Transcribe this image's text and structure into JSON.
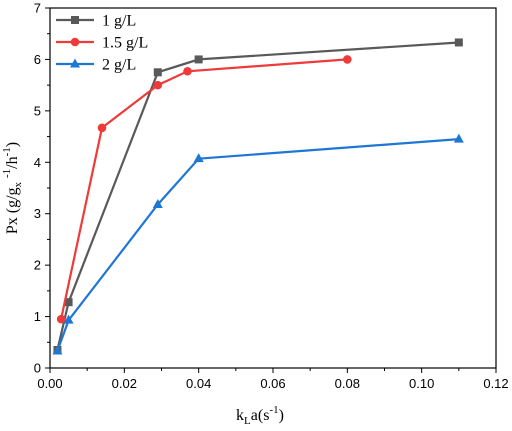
{
  "chart_data": {
    "type": "line",
    "title": "",
    "xlabel": {
      "base": "k",
      "sub": "L",
      "rest": "a(s",
      "sup": "-1",
      "close": ")"
    },
    "ylabel": {
      "p1": "Px (g/g",
      "sub": "x",
      "p2": " ",
      "sup1": "-1",
      "p3": "/h",
      "sup2": "-1",
      "p4": ")"
    },
    "xlim": [
      0,
      0.12
    ],
    "ylim": [
      0,
      7
    ],
    "x_ticks": [
      "0.00",
      "0.02",
      "0.04",
      "0.06",
      "0.08",
      "0.10",
      "0.12"
    ],
    "y_ticks": [
      "0",
      "1",
      "2",
      "3",
      "4",
      "5",
      "6",
      "7"
    ],
    "legend_position": "top-left",
    "series": [
      {
        "name": "1 g/L",
        "color": "#595959",
        "marker": "square",
        "x": [
          0.002,
          0.005,
          0.029,
          0.04,
          0.11
        ],
        "y": [
          0.35,
          1.28,
          5.75,
          6.0,
          6.33
        ]
      },
      {
        "name": "1.5 g/L",
        "color": "#ee3a3a",
        "marker": "circle",
        "x": [
          0.003,
          0.014,
          0.029,
          0.037,
          0.08
        ],
        "y": [
          0.95,
          4.67,
          5.5,
          5.77,
          6.0
        ]
      },
      {
        "name": "2 g/L",
        "color": "#1f77d4",
        "marker": "triangle",
        "x": [
          0.002,
          0.005,
          0.029,
          0.04,
          0.11
        ],
        "y": [
          0.33,
          0.93,
          3.18,
          4.07,
          4.45
        ]
      }
    ]
  }
}
